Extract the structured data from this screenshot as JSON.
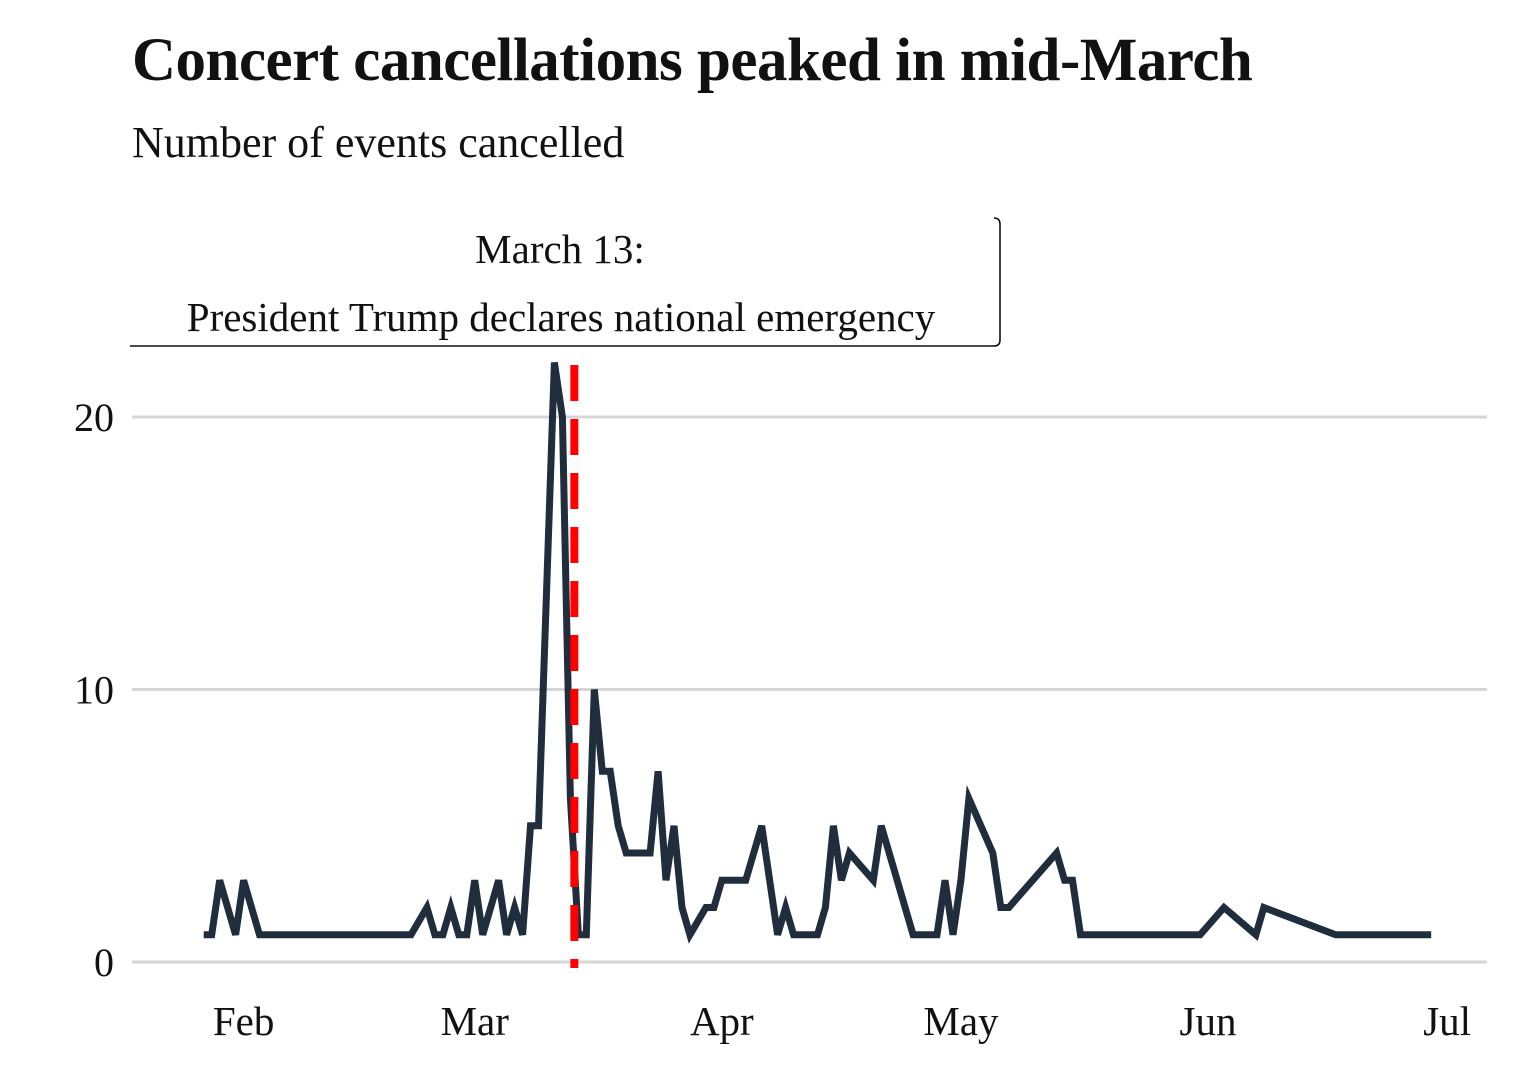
{
  "chart_data": {
    "type": "line",
    "title": "Concert cancellations peaked in mid-March",
    "subtitle": "Number of events cancelled",
    "xlabel": "",
    "ylabel": "",
    "x_range": [
      "2020-01-18",
      "2020-07-06"
    ],
    "ylim": [
      0,
      22
    ],
    "y_ticks": [
      0,
      10,
      20
    ],
    "x_ticks": [
      {
        "date": "2020-02-01",
        "label": "Feb"
      },
      {
        "date": "2020-03-01",
        "label": "Mar"
      },
      {
        "date": "2020-04-01",
        "label": "Apr"
      },
      {
        "date": "2020-05-01",
        "label": "May"
      },
      {
        "date": "2020-06-01",
        "label": "Jun"
      },
      {
        "date": "2020-07-01",
        "label": "Jul"
      }
    ],
    "grid": "horizontal",
    "line_color": "#1f2d3d",
    "series": [
      {
        "points": [
          [
            "2020-01-27",
            1
          ],
          [
            "2020-01-28",
            1
          ],
          [
            "2020-01-29",
            3
          ],
          [
            "2020-01-31",
            1
          ],
          [
            "2020-02-01",
            3
          ],
          [
            "2020-02-03",
            1
          ],
          [
            "2020-02-22",
            1
          ],
          [
            "2020-02-24",
            2
          ],
          [
            "2020-02-25",
            1
          ],
          [
            "2020-02-26",
            1
          ],
          [
            "2020-02-27",
            2
          ],
          [
            "2020-02-28",
            1
          ],
          [
            "2020-02-29",
            1
          ],
          [
            "2020-03-01",
            3
          ],
          [
            "2020-03-02",
            1
          ],
          [
            "2020-03-04",
            3
          ],
          [
            "2020-03-05",
            1
          ],
          [
            "2020-03-06",
            2
          ],
          [
            "2020-03-07",
            1
          ],
          [
            "2020-03-08",
            5
          ],
          [
            "2020-03-09",
            5
          ],
          [
            "2020-03-11",
            22
          ],
          [
            "2020-03-12",
            20
          ],
          [
            "2020-03-13",
            6
          ],
          [
            "2020-03-14",
            1
          ],
          [
            "2020-03-15",
            1
          ],
          [
            "2020-03-16",
            10
          ],
          [
            "2020-03-17",
            7
          ],
          [
            "2020-03-18",
            7
          ],
          [
            "2020-03-19",
            5
          ],
          [
            "2020-03-20",
            4
          ],
          [
            "2020-03-23",
            4
          ],
          [
            "2020-03-24",
            7
          ],
          [
            "2020-03-25",
            3
          ],
          [
            "2020-03-26",
            5
          ],
          [
            "2020-03-27",
            2
          ],
          [
            "2020-03-28",
            1
          ],
          [
            "2020-03-30",
            2
          ],
          [
            "2020-03-31",
            2
          ],
          [
            "2020-04-01",
            3
          ],
          [
            "2020-04-04",
            3
          ],
          [
            "2020-04-06",
            5
          ],
          [
            "2020-04-08",
            1
          ],
          [
            "2020-04-09",
            2
          ],
          [
            "2020-04-10",
            1
          ],
          [
            "2020-04-13",
            1
          ],
          [
            "2020-04-14",
            2
          ],
          [
            "2020-04-15",
            5
          ],
          [
            "2020-04-16",
            3
          ],
          [
            "2020-04-17",
            4
          ],
          [
            "2020-04-20",
            3
          ],
          [
            "2020-04-21",
            5
          ],
          [
            "2020-04-22",
            4
          ],
          [
            "2020-04-25",
            1
          ],
          [
            "2020-04-28",
            1
          ],
          [
            "2020-04-29",
            3
          ],
          [
            "2020-04-30",
            1
          ],
          [
            "2020-05-01",
            3
          ],
          [
            "2020-05-02",
            6
          ],
          [
            "2020-05-05",
            4
          ],
          [
            "2020-05-06",
            2
          ],
          [
            "2020-05-07",
            2
          ],
          [
            "2020-05-13",
            4
          ],
          [
            "2020-05-14",
            3
          ],
          [
            "2020-05-15",
            3
          ],
          [
            "2020-05-16",
            1
          ],
          [
            "2020-05-31",
            1
          ],
          [
            "2020-06-03",
            2
          ],
          [
            "2020-06-07",
            1
          ],
          [
            "2020-06-08",
            2
          ],
          [
            "2020-06-17",
            1
          ],
          [
            "2020-06-29",
            1
          ]
        ]
      }
    ],
    "annotation": {
      "date": "2020-03-13",
      "line_color": "#ff0000",
      "line_style": "dashed",
      "label_line1": "March 13:",
      "label_line2": "President Trump declares national emergency"
    }
  }
}
